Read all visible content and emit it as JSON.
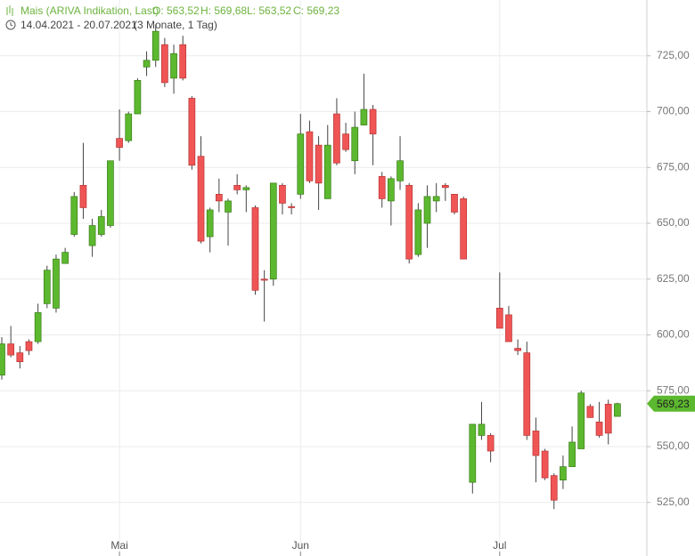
{
  "chart_data": {
    "type": "candlestick",
    "title": "Mais (ARIVA Indikation, Last)",
    "legend_items": [
      "O: 563,52",
      "H: 569,68",
      "L: 563,52",
      "C: 569,23"
    ],
    "date_range": "14.04.2021 - 20.07.2021",
    "period": "(3 Monate, 1 Tag)",
    "up_color": "#5cb82e",
    "down_color": "#f05555",
    "grid": true,
    "categories": [
      null,
      null,
      null,
      null,
      null,
      null,
      null,
      null,
      null,
      null,
      null,
      null,
      null,
      "Mai",
      null,
      null,
      null,
      null,
      null,
      null,
      null,
      null,
      null,
      null,
      null,
      null,
      null,
      null,
      null,
      null,
      null,
      null,
      null,
      "Jun",
      null,
      null,
      null,
      null,
      null,
      null,
      null,
      null,
      null,
      null,
      null,
      null,
      null,
      null,
      null,
      null,
      null,
      null,
      null,
      null,
      null,
      "Jul",
      null,
      null,
      null,
      null,
      null,
      null,
      null,
      null,
      null,
      null,
      null,
      null,
      null
    ],
    "open": [
      582,
      596,
      592,
      597,
      597,
      614,
      612,
      632,
      645,
      667,
      640,
      645,
      649,
      688,
      687,
      699,
      720,
      723,
      730,
      715,
      730,
      706,
      680,
      644,
      663,
      655,
      667,
      665,
      657,
      625,
      625,
      667,
      657.5,
      663,
      691,
      685,
      661,
      699,
      690,
      678,
      694,
      701,
      671,
      660,
      669,
      667,
      636,
      650,
      660,
      667,
      663,
      661,
      534,
      555,
      555,
      612,
      609,
      594,
      592,
      557,
      548,
      537,
      535,
      541,
      549,
      568,
      561,
      569,
      563.52
    ],
    "high": [
      599,
      604,
      595,
      598,
      614,
      631,
      636,
      639,
      664,
      686,
      652,
      656,
      678,
      701,
      700,
      715,
      727,
      739,
      733,
      730,
      734,
      707,
      689,
      657,
      670,
      661,
      672,
      667,
      658,
      629,
      668,
      668,
      659,
      699,
      696,
      689,
      694,
      706,
      695,
      700,
      717,
      703,
      673,
      671,
      689,
      668,
      659,
      667,
      668,
      668,
      663,
      662,
      560,
      570,
      556,
      628,
      613,
      598,
      597,
      563,
      549,
      538,
      546,
      559,
      575,
      569,
      570,
      571,
      569.68
    ],
    "low": [
      580,
      590,
      585,
      591,
      596,
      612,
      610,
      632,
      644,
      652,
      635,
      644,
      648,
      678,
      686,
      699,
      716,
      720,
      711,
      708,
      714,
      674,
      641,
      637,
      655,
      640,
      663,
      655,
      618,
      606,
      622,
      654,
      654,
      661,
      668,
      656,
      661,
      676,
      682,
      672,
      694,
      676,
      657,
      649,
      665,
      632,
      635,
      639,
      655,
      660,
      654,
      634,
      529,
      553,
      543,
      603,
      597,
      591,
      553,
      534,
      535,
      522,
      531,
      541,
      549,
      563,
      554,
      551,
      563.52
    ],
    "close": [
      596,
      591,
      588,
      593,
      610,
      629,
      634,
      637,
      662,
      657,
      649,
      653,
      678,
      684,
      699,
      714,
      723,
      736,
      713,
      726,
      715,
      676,
      642,
      656,
      660,
      660,
      665,
      666,
      620,
      624.5,
      668,
      659,
      657,
      690,
      669,
      668,
      685,
      677,
      683,
      693,
      701,
      690,
      661,
      670,
      678,
      634,
      656,
      662,
      662,
      666,
      655,
      634,
      560,
      560,
      548,
      603,
      597,
      593,
      555,
      546,
      536,
      526,
      541,
      552,
      574,
      563,
      555,
      556,
      569.23
    ],
    "ylim": [
      501,
      750
    ],
    "yticks": [
      {
        "value": 525,
        "label": "525,00"
      },
      {
        "value": 550,
        "label": "550,00"
      },
      {
        "value": 575,
        "label": "575,00"
      },
      {
        "value": 600,
        "label": "600,00"
      },
      {
        "value": 625,
        "label": "625,00"
      },
      {
        "value": 650,
        "label": "650,00"
      },
      {
        "value": 675,
        "label": "675,00"
      },
      {
        "value": 700,
        "label": "700,00"
      },
      {
        "value": 725,
        "label": "725,00"
      }
    ],
    "last_price": {
      "value": 569.23,
      "label": "569,23"
    }
  }
}
